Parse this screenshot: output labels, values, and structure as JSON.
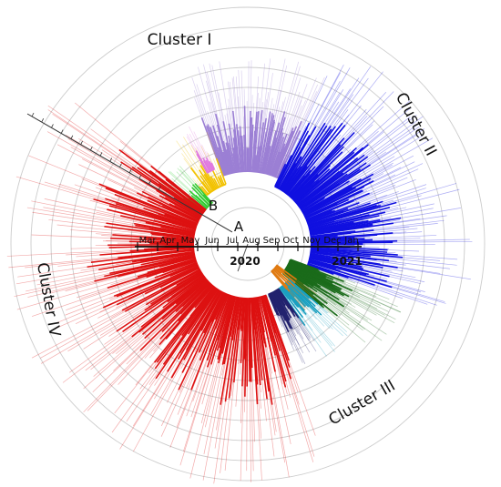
{
  "clusters": {
    "I": "Cluster I",
    "II": "Cluster II",
    "III": "Cluster III",
    "IV": "Cluster IV"
  },
  "nodes": {
    "a": "A",
    "b": "B"
  },
  "timeline": {
    "months": [
      "Mar",
      "Apr",
      "May",
      "Jun",
      "Jul",
      "Aug",
      "Sep",
      "Oct",
      "Nov",
      "Dec",
      "Jan"
    ],
    "years": [
      "2020",
      "2021"
    ]
  },
  "colors": {
    "cluster_I": "#9b7fd4",
    "cluster_II": "#1010e0",
    "cluster_III": "#1a6b1a",
    "cluster_IV": "#dd1111",
    "navy": "#22226e",
    "orange": "#e07a10",
    "teal": "#1aa0c0",
    "yellow": "#f2c200",
    "green": "#33cc33",
    "magenta": "#e07ae0",
    "ring": "#cccccc",
    "axis": "#111111"
  }
}
